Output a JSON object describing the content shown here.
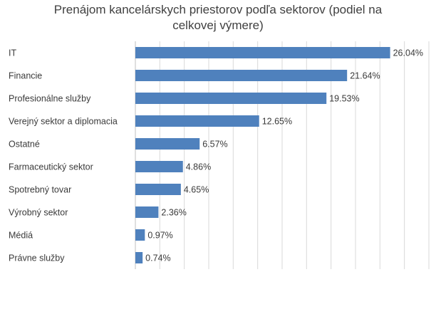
{
  "chart_data": {
    "type": "bar",
    "orientation": "horizontal",
    "title_lines": [
      "Prenájom kancelárskych priestorov podľa sektorov (podiel na",
      "celkovej výmere)"
    ],
    "categories": [
      "IT",
      "Financie",
      "Profesionálne služby",
      "Verejný sektor a diplomacia",
      "Ostatné",
      "Farmaceutický sektor",
      "Spotrebný tovar",
      "Výrobný sektor",
      "Médiá",
      "Právne služby"
    ],
    "values": [
      26.04,
      21.64,
      19.53,
      12.65,
      6.57,
      4.86,
      4.65,
      2.36,
      0.97,
      0.74
    ],
    "value_labels": [
      "26.04%",
      "21.64%",
      "19.53%",
      "12.65%",
      "6.57%",
      "4.86%",
      "4.65%",
      "2.36%",
      "0.97%",
      "0.74%"
    ],
    "xlim": [
      0,
      30
    ],
    "grid": true,
    "bar_color": "#4f81bd"
  }
}
